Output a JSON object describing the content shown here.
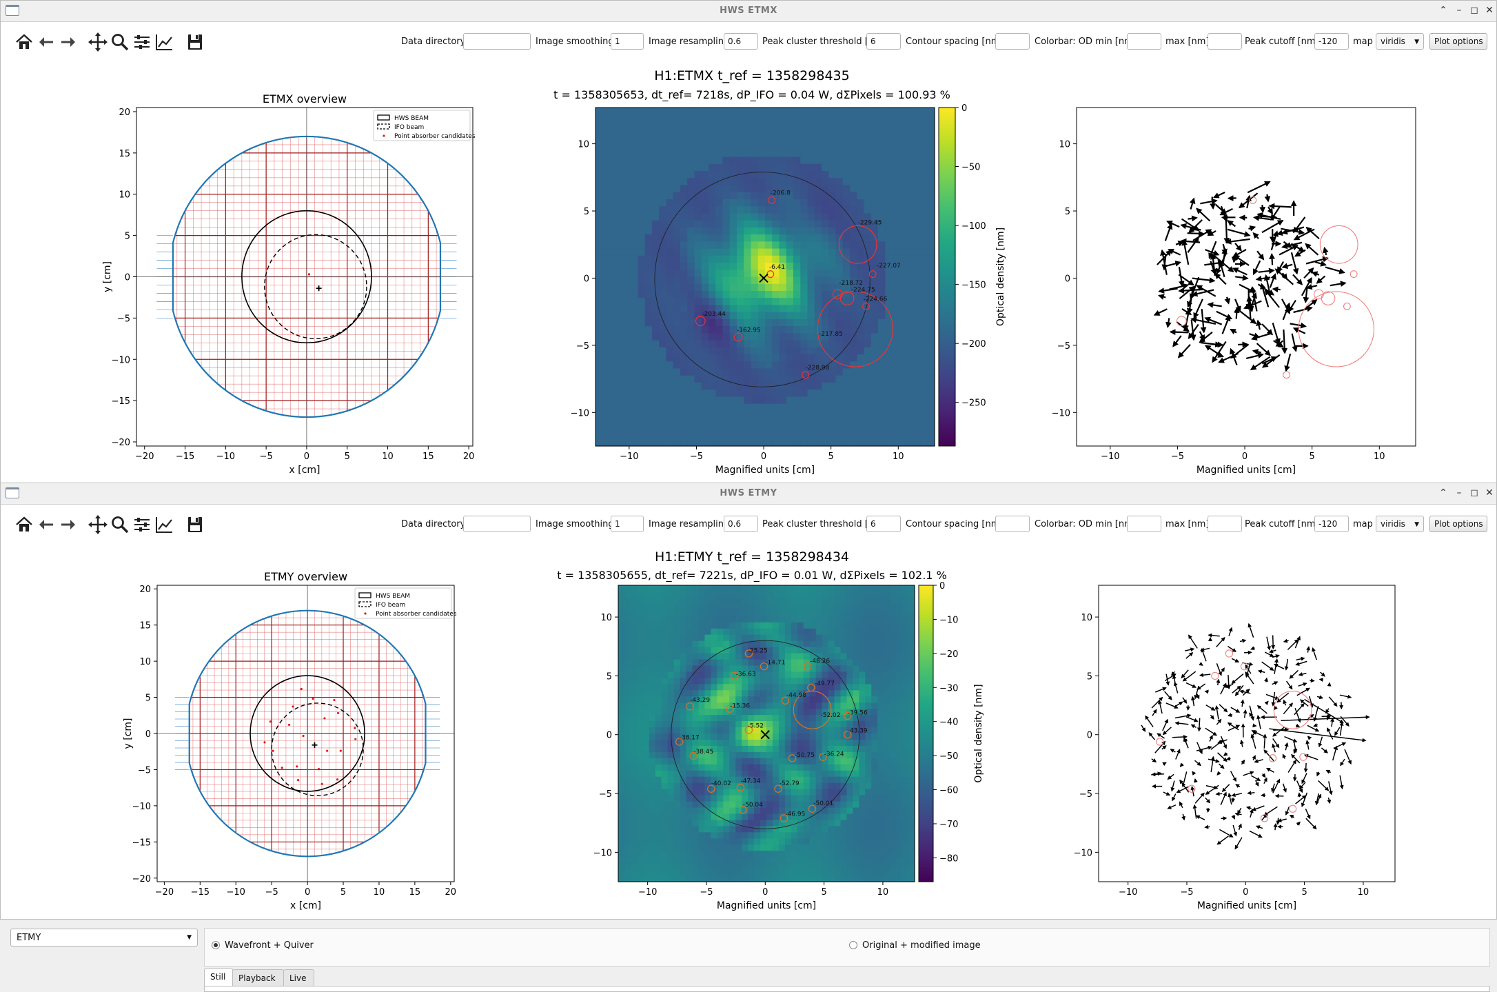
{
  "windows": [
    {
      "id": "etmx",
      "title": "HWS ETMX",
      "params": {
        "data_directory_label": "Data directory:",
        "data_directory_value": "",
        "smoothing_label": "Image smoothing",
        "smoothing_value": "1",
        "resampling_label": "Image resampling",
        "resampling_value": "0.6",
        "peak_cluster_label": "Peak cluster threshold [%]",
        "peak_cluster_value": "6",
        "contour_label": "Contour spacing [nm]",
        "contour_value": "",
        "od_min_label": "Colorbar: OD min [nm]",
        "od_min_value": "",
        "max_label": "max [nm]",
        "max_value": "",
        "peak_cutoff_label": "Peak cutoff [nm]",
        "peak_cutoff_value": "-120",
        "map_label": "map",
        "map_value": "viridis",
        "plot_options_label": "Plot options"
      },
      "suptitle": "H1:ETMX t_ref = 1358298435",
      "overview": {
        "title": "ETMX overview",
        "xlabel": "x [cm]",
        "ylabel": "y [cm]",
        "legend": [
          "HWS BEAM",
          "IFO beam",
          "Point absorber candidates"
        ]
      },
      "wavefront": {
        "title": "t = 1358305653, dt_ref= 7218s, dP_IFO = 0.04 W, dΣPixels = 100.93 %",
        "xlabel": "Magnified units [cm]",
        "colorbar_label": "Optical density [nm]",
        "colorbar_ticks": [
          "0",
          "−50",
          "−100",
          "−150",
          "−200",
          "−250"
        ]
      },
      "quiver": {
        "xlabel": "Magnified units [cm]"
      }
    },
    {
      "id": "etmy",
      "title": "HWS ETMY",
      "params": {
        "data_directory_label": "Data directory:",
        "data_directory_value": "",
        "smoothing_label": "Image smoothing",
        "smoothing_value": "1",
        "resampling_label": "Image resampling",
        "resampling_value": "0.6",
        "peak_cluster_label": "Peak cluster threshold [%]",
        "peak_cluster_value": "6",
        "contour_label": "Contour spacing [nm]",
        "contour_value": "",
        "od_min_label": "Colorbar: OD min [nm]",
        "od_min_value": "",
        "max_label": "max [nm]",
        "max_value": "",
        "peak_cutoff_label": "Peak cutoff [nm]",
        "peak_cutoff_value": "-120",
        "map_label": "map",
        "map_value": "viridis",
        "plot_options_label": "Plot options"
      },
      "suptitle": "H1:ETMY t_ref = 1358298434",
      "overview": {
        "title": "ETMY overview",
        "xlabel": "x [cm]",
        "ylabel": "y [cm]",
        "legend": [
          "HWS BEAM",
          "IFO beam",
          "Point absorber candidates"
        ]
      },
      "wavefront": {
        "title": "t = 1358305655, dt_ref= 7221s, dP_IFO = 0.01 W, dΣPixels = 102.1 %",
        "xlabel": "Magnified units [cm]",
        "colorbar_label": "Optical density [nm]",
        "colorbar_ticks": [
          "0",
          "−10",
          "−20",
          "−30",
          "−40",
          "−50",
          "−60",
          "−70",
          "−80"
        ]
      },
      "quiver": {
        "xlabel": "Magnified units [cm]"
      }
    }
  ],
  "toolbar_icons": [
    "home-icon",
    "back-icon",
    "forward-icon",
    "pan-icon",
    "zoom-icon",
    "configure-subplots-icon",
    "edit-axes-icon",
    "save-icon"
  ],
  "bottom": {
    "optic_select": "ETMY",
    "radio_wavefront_quiver": "Wavefront + Quiver",
    "radio_original_modified": "Original + modified image",
    "tabs": [
      "Still",
      "Playback",
      "Live"
    ]
  },
  "colors": {
    "mirror_outline": "#1f77b4",
    "grid_red": "#d62728",
    "candidate": "#e41a1c"
  }
}
